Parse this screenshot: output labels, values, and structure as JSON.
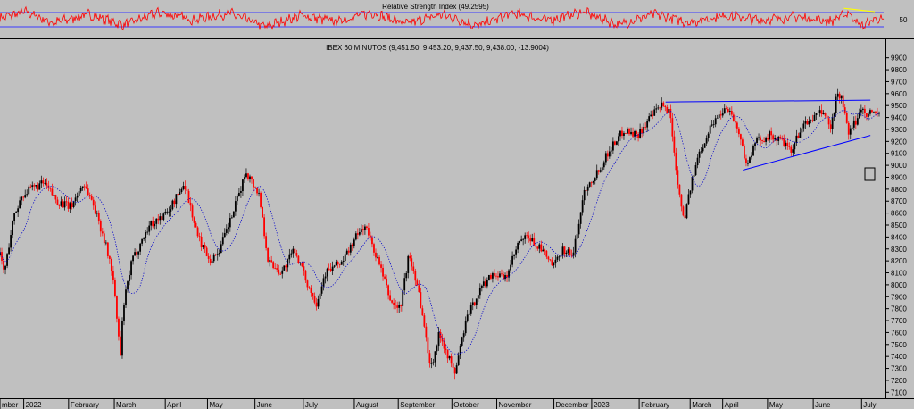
{
  "chart_data": [
    {
      "type": "line",
      "title": "Relative Strength Index (49.2595)",
      "ylim": [
        0,
        100
      ],
      "y_ticks": [
        "50"
      ],
      "band_lines": [
        70,
        30
      ],
      "band_color": "#3a3aff",
      "series": [
        {
          "color": "#ff0000",
          "anchors": [
            [
              0,
              55
            ],
            [
              0.03,
              72
            ],
            [
              0.06,
              40
            ],
            [
              0.1,
              65
            ],
            [
              0.14,
              35
            ],
            [
              0.18,
              70
            ],
            [
              0.22,
              50
            ],
            [
              0.26,
              68
            ],
            [
              0.3,
              30
            ],
            [
              0.34,
              62
            ],
            [
              0.38,
              45
            ],
            [
              0.42,
              70
            ],
            [
              0.46,
              38
            ],
            [
              0.5,
              65
            ],
            [
              0.54,
              32
            ],
            [
              0.58,
              68
            ],
            [
              0.62,
              48
            ],
            [
              0.66,
              72
            ],
            [
              0.7,
              35
            ],
            [
              0.74,
              66
            ],
            [
              0.78,
              42
            ],
            [
              0.82,
              62
            ],
            [
              0.86,
              48
            ],
            [
              0.9,
              58
            ],
            [
              0.94,
              45
            ],
            [
              0.96,
              70
            ],
            [
              0.975,
              30
            ],
            [
              0.99,
              52
            ],
            [
              1,
              49
            ]
          ]
        }
      ],
      "annotation_line": {
        "color": "#ffff00",
        "from": [
          0.955,
          82
        ],
        "to": [
          0.99,
          72
        ]
      }
    },
    {
      "type": "candlestick",
      "title": "IBEX 60 MINUTOS (9,451.50, 9,453.20, 9,437.50, 9,438.00, -13.9004)",
      "ylim": [
        7050,
        9950
      ],
      "y_ticks": [
        7100,
        7200,
        7300,
        7400,
        7500,
        7600,
        7700,
        7800,
        7900,
        8000,
        8100,
        8200,
        8300,
        8400,
        8500,
        8600,
        8700,
        8800,
        8900,
        9000,
        9100,
        9200,
        9300,
        9400,
        9500,
        9600,
        9700,
        9800,
        9900
      ],
      "x_labels": [
        "mber",
        "2022",
        "February",
        "March",
        "April",
        "May",
        "June",
        "July",
        "August",
        "September",
        "October",
        "November",
        "December",
        "2023",
        "February",
        "March",
        "April",
        "May",
        "June",
        "July"
      ],
      "x_label_pos": [
        0,
        0.027,
        0.078,
        0.13,
        0.188,
        0.236,
        0.29,
        0.345,
        0.403,
        0.453,
        0.514,
        0.565,
        0.63,
        0.673,
        0.727,
        0.785,
        0.822,
        0.873,
        0.925,
        0.98
      ],
      "up_color": "#000000",
      "down_color": "#ff0000",
      "ma_color": "#0000cc",
      "price_anchors": [
        [
          0,
          8250
        ],
        [
          0.005,
          8100
        ],
        [
          0.015,
          8550
        ],
        [
          0.025,
          8750
        ],
        [
          0.035,
          8800
        ],
        [
          0.05,
          8850
        ],
        [
          0.065,
          8700
        ],
        [
          0.08,
          8650
        ],
        [
          0.095,
          8850
        ],
        [
          0.105,
          8700
        ],
        [
          0.118,
          8400
        ],
        [
          0.128,
          8100
        ],
        [
          0.137,
          7400
        ],
        [
          0.14,
          7800
        ],
        [
          0.15,
          8200
        ],
        [
          0.17,
          8500
        ],
        [
          0.19,
          8600
        ],
        [
          0.21,
          8850
        ],
        [
          0.225,
          8400
        ],
        [
          0.24,
          8200
        ],
        [
          0.25,
          8300
        ],
        [
          0.265,
          8600
        ],
        [
          0.28,
          8950
        ],
        [
          0.295,
          8750
        ],
        [
          0.305,
          8200
        ],
        [
          0.32,
          8100
        ],
        [
          0.335,
          8300
        ],
        [
          0.35,
          8000
        ],
        [
          0.36,
          7850
        ],
        [
          0.37,
          8100
        ],
        [
          0.39,
          8200
        ],
        [
          0.405,
          8400
        ],
        [
          0.415,
          8500
        ],
        [
          0.43,
          8200
        ],
        [
          0.445,
          7850
        ],
        [
          0.455,
          7800
        ],
        [
          0.465,
          8250
        ],
        [
          0.475,
          8000
        ],
        [
          0.49,
          7300
        ],
        [
          0.5,
          7600
        ],
        [
          0.51,
          7400
        ],
        [
          0.517,
          7250
        ],
        [
          0.53,
          7700
        ],
        [
          0.545,
          7950
        ],
        [
          0.56,
          8100
        ],
        [
          0.575,
          8050
        ],
        [
          0.59,
          8350
        ],
        [
          0.6,
          8400
        ],
        [
          0.615,
          8300
        ],
        [
          0.63,
          8150
        ],
        [
          0.64,
          8300
        ],
        [
          0.652,
          8250
        ],
        [
          0.665,
          8800
        ],
        [
          0.68,
          8950
        ],
        [
          0.695,
          9150
        ],
        [
          0.71,
          9300
        ],
        [
          0.725,
          9250
        ],
        [
          0.74,
          9400
        ],
        [
          0.752,
          9500
        ],
        [
          0.762,
          9450
        ],
        [
          0.767,
          9100
        ],
        [
          0.772,
          8800
        ],
        [
          0.778,
          8550
        ],
        [
          0.785,
          8800
        ],
        [
          0.795,
          9100
        ],
        [
          0.81,
          9350
        ],
        [
          0.827,
          9500
        ],
        [
          0.837,
          9350
        ],
        [
          0.85,
          9000
        ],
        [
          0.86,
          9200
        ],
        [
          0.875,
          9250
        ],
        [
          0.89,
          9200
        ],
        [
          0.9,
          9100
        ],
        [
          0.91,
          9300
        ],
        [
          0.925,
          9400
        ],
        [
          0.937,
          9450
        ],
        [
          0.945,
          9300
        ],
        [
          0.952,
          9600
        ],
        [
          0.958,
          9550
        ],
        [
          0.965,
          9250
        ],
        [
          0.972,
          9350
        ],
        [
          0.98,
          9480
        ],
        [
          0.985,
          9440
        ]
      ],
      "trend_lines": [
        {
          "color": "#0000ff",
          "from": [
            0.757,
            9530
          ],
          "to": [
            0.99,
            9545
          ]
        },
        {
          "color": "#0000ff",
          "from": [
            0.845,
            8960
          ],
          "to": [
            0.99,
            9250
          ]
        }
      ]
    }
  ]
}
